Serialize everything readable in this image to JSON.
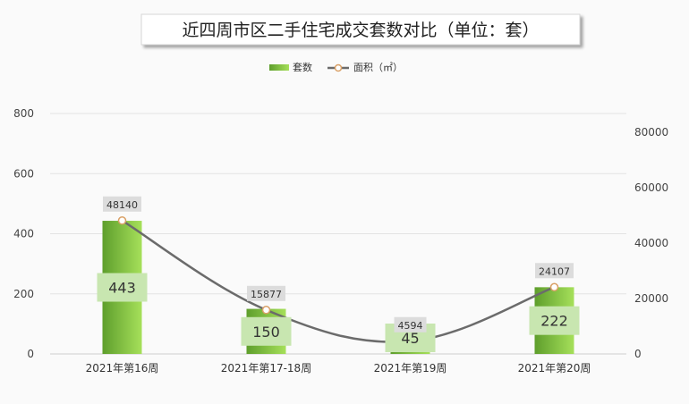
{
  "chart_data": {
    "type": "bar",
    "title": "近四周市区二手住宅成交套数对比（单位：套）",
    "categories": [
      "2021年第16周",
      "2021年第17-18周",
      "2021年第19周",
      "2021年第20周"
    ],
    "series": [
      {
        "name": "套数",
        "kind": "bar",
        "axis": "left",
        "values": [
          443,
          150,
          45,
          222
        ],
        "color": "#7cc242"
      },
      {
        "name": "面积（㎡）",
        "kind": "line",
        "axis": "right",
        "values": [
          48140,
          15877,
          4594,
          24107
        ],
        "color": "#6b6b6b"
      }
    ],
    "y_left": {
      "min": 0,
      "max": 800,
      "ticks": [
        0,
        200,
        400,
        600,
        800
      ]
    },
    "y_right": {
      "min": 0,
      "max": 90000,
      "ticks": [
        0,
        20000,
        40000,
        60000,
        80000
      ]
    },
    "legend": "top-center",
    "grid": true
  }
}
